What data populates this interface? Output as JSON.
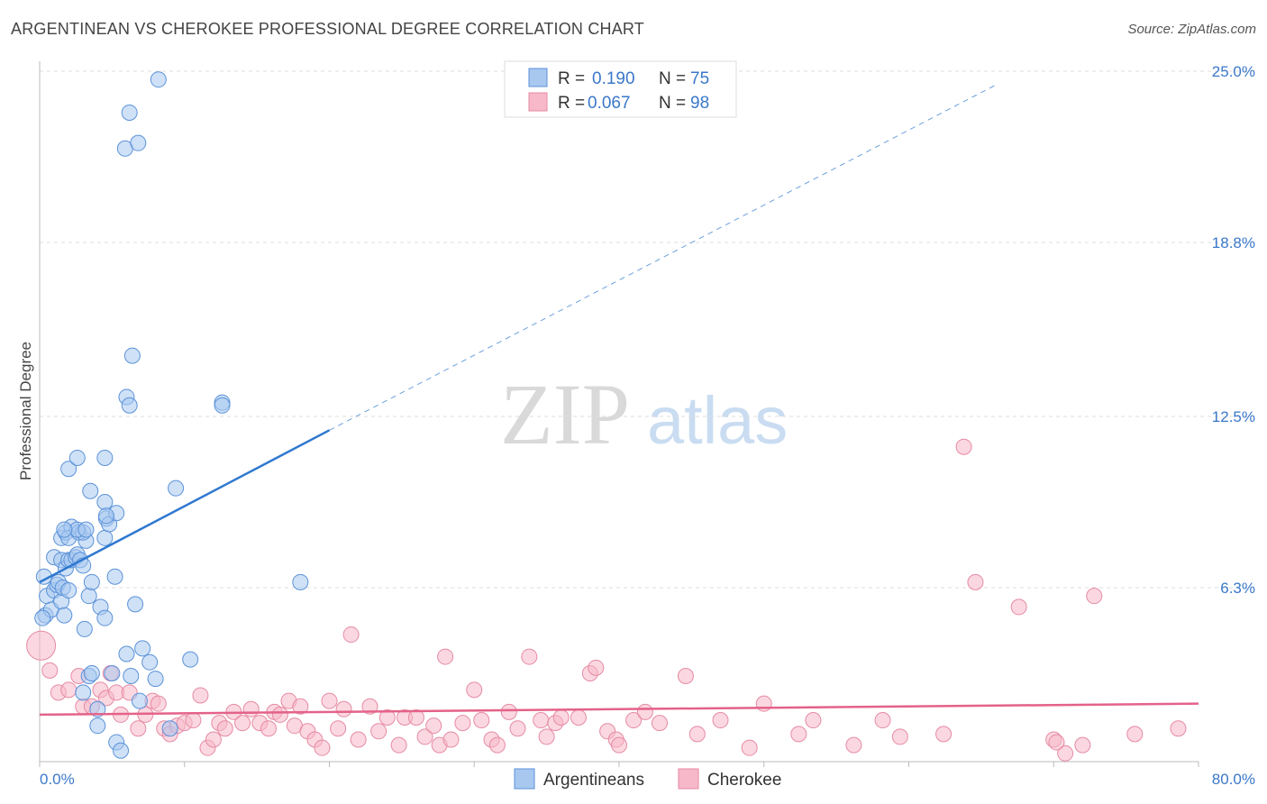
{
  "header": {
    "title": "ARGENTINEAN VS CHEROKEE PROFESSIONAL DEGREE CORRELATION CHART",
    "source": "Source: ZipAtlas.com"
  },
  "colors": {
    "blue": "#a8c8f0",
    "blue_edge": "#5b92d8",
    "blue_line": "#2e78d0",
    "pink": "#f7b8c9",
    "pink_edge": "#e68aa4",
    "pink_line": "#e4628a",
    "tick_text": "#3a78c9",
    "grid": "#dddddd"
  },
  "watermark": {
    "zip": "ZIP",
    "atlas": "atlas"
  },
  "chart_data": {
    "type": "scatter",
    "title": "ARGENTINEAN VS CHEROKEE PROFESSIONAL DEGREE CORRELATION CHART",
    "xlabel": "",
    "ylabel": "Professional Degree",
    "xlim": [
      0,
      80
    ],
    "ylim": [
      0,
      25.0
    ],
    "x_tick_labels": [
      "0.0%",
      "80.0%"
    ],
    "y_ticks": [
      6.3,
      12.5,
      18.8,
      25.0
    ],
    "y_tick_labels": [
      "6.3%",
      "12.5%",
      "18.8%",
      "25.0%"
    ],
    "grid": true,
    "legend_top": [
      {
        "r_label": "R =",
        "r_value": "0.190",
        "n_label": "N =",
        "n_value": "75"
      },
      {
        "r_label": "R =",
        "r_value": "0.067",
        "n_label": "N =",
        "n_value": "98"
      }
    ],
    "series": [
      {
        "name": "Argentineans",
        "trend": {
          "x0": 0,
          "y0": 6.5,
          "x1": 20,
          "y1": 12.0,
          "dash_to_x": 66,
          "dash_to_y": 24.5
        },
        "points": [
          [
            0.3,
            6.7
          ],
          [
            0.5,
            6.0
          ],
          [
            0.4,
            5.3
          ],
          [
            0.8,
            5.5
          ],
          [
            1.0,
            6.2
          ],
          [
            1.2,
            6.4
          ],
          [
            1.3,
            6.5
          ],
          [
            1.5,
            5.8
          ],
          [
            1.6,
            6.3
          ],
          [
            1.0,
            7.4
          ],
          [
            1.5,
            7.3
          ],
          [
            1.8,
            7.0
          ],
          [
            2.0,
            7.3
          ],
          [
            2.2,
            7.3
          ],
          [
            2.5,
            7.4
          ],
          [
            2.6,
            7.5
          ],
          [
            2.8,
            7.3
          ],
          [
            3.0,
            7.1
          ],
          [
            3.2,
            8.0
          ],
          [
            1.5,
            8.1
          ],
          [
            1.8,
            8.3
          ],
          [
            2.2,
            8.5
          ],
          [
            2.0,
            8.1
          ],
          [
            2.7,
            8.3
          ],
          [
            3.0,
            8.3
          ],
          [
            4.5,
            8.1
          ],
          [
            4.6,
            8.8
          ],
          [
            4.8,
            8.6
          ],
          [
            2.6,
            8.4
          ],
          [
            3.2,
            8.4
          ],
          [
            1.7,
            8.4
          ],
          [
            3.5,
            9.8
          ],
          [
            4.5,
            9.4
          ],
          [
            5.3,
            9.0
          ],
          [
            4.6,
            8.9
          ],
          [
            2.0,
            10.6
          ],
          [
            2.6,
            11.0
          ],
          [
            4.5,
            11.0
          ],
          [
            9.4,
            9.9
          ],
          [
            6.0,
            13.2
          ],
          [
            6.2,
            12.9
          ],
          [
            6.4,
            14.7
          ],
          [
            12.6,
            13.0
          ],
          [
            12.6,
            12.9
          ],
          [
            5.9,
            22.2
          ],
          [
            6.2,
            23.5
          ],
          [
            6.8,
            22.4
          ],
          [
            8.2,
            24.7
          ],
          [
            1.7,
            5.3
          ],
          [
            2.0,
            6.2
          ],
          [
            3.1,
            4.8
          ],
          [
            3.4,
            6.0
          ],
          [
            3.6,
            6.5
          ],
          [
            4.2,
            5.6
          ],
          [
            4.5,
            5.2
          ],
          [
            5.2,
            6.7
          ],
          [
            6.6,
            5.7
          ],
          [
            6.0,
            3.9
          ],
          [
            7.1,
            4.1
          ],
          [
            7.6,
            3.6
          ],
          [
            10.4,
            3.7
          ],
          [
            3.4,
            3.1
          ],
          [
            3.6,
            3.2
          ],
          [
            5.0,
            3.2
          ],
          [
            6.3,
            3.1
          ],
          [
            8.0,
            3.0
          ],
          [
            3.0,
            2.5
          ],
          [
            4.0,
            1.9
          ],
          [
            6.9,
            2.2
          ],
          [
            4.0,
            1.3
          ],
          [
            5.3,
            0.7
          ],
          [
            5.6,
            0.4
          ],
          [
            9.0,
            1.2
          ],
          [
            18.0,
            6.5
          ],
          [
            0.2,
            5.2
          ]
        ]
      },
      {
        "name": "Cherokee",
        "trend": {
          "x0": 0,
          "y0": 1.7,
          "x1": 80,
          "y1": 2.1
        },
        "points": [
          [
            0.1,
            4.2
          ],
          [
            0.7,
            3.3
          ],
          [
            1.3,
            2.5
          ],
          [
            2.0,
            2.6
          ],
          [
            2.7,
            3.1
          ],
          [
            3.0,
            2.0
          ],
          [
            3.6,
            2.0
          ],
          [
            4.2,
            2.6
          ],
          [
            4.6,
            2.3
          ],
          [
            4.9,
            3.2
          ],
          [
            5.3,
            2.5
          ],
          [
            5.6,
            1.7
          ],
          [
            6.2,
            2.5
          ],
          [
            6.8,
            1.2
          ],
          [
            7.3,
            1.7
          ],
          [
            7.8,
            2.2
          ],
          [
            8.2,
            2.1
          ],
          [
            8.6,
            1.2
          ],
          [
            9.0,
            1.0
          ],
          [
            9.5,
            1.3
          ],
          [
            10.0,
            1.4
          ],
          [
            10.6,
            1.5
          ],
          [
            11.1,
            2.4
          ],
          [
            11.6,
            0.5
          ],
          [
            12.0,
            0.8
          ],
          [
            12.4,
            1.4
          ],
          [
            12.8,
            1.2
          ],
          [
            13.4,
            1.8
          ],
          [
            14.0,
            1.4
          ],
          [
            14.6,
            1.9
          ],
          [
            15.2,
            1.4
          ],
          [
            15.8,
            1.2
          ],
          [
            16.2,
            1.8
          ],
          [
            16.6,
            1.7
          ],
          [
            17.2,
            2.2
          ],
          [
            17.6,
            1.3
          ],
          [
            18.0,
            2.0
          ],
          [
            18.5,
            1.1
          ],
          [
            19.0,
            0.8
          ],
          [
            19.5,
            0.5
          ],
          [
            20.0,
            2.2
          ],
          [
            20.6,
            1.2
          ],
          [
            21.0,
            1.9
          ],
          [
            21.5,
            4.6
          ],
          [
            22.0,
            0.8
          ],
          [
            22.8,
            2.0
          ],
          [
            23.4,
            1.1
          ],
          [
            24.0,
            1.6
          ],
          [
            24.8,
            0.6
          ],
          [
            25.2,
            1.6
          ],
          [
            26.0,
            1.6
          ],
          [
            26.6,
            0.9
          ],
          [
            27.2,
            1.3
          ],
          [
            27.6,
            0.6
          ],
          [
            28.0,
            3.8
          ],
          [
            28.4,
            0.8
          ],
          [
            29.2,
            1.4
          ],
          [
            30.0,
            2.6
          ],
          [
            30.5,
            1.5
          ],
          [
            31.2,
            0.8
          ],
          [
            31.6,
            0.6
          ],
          [
            32.4,
            1.8
          ],
          [
            33.0,
            1.2
          ],
          [
            33.8,
            3.8
          ],
          [
            34.6,
            1.5
          ],
          [
            35.0,
            0.9
          ],
          [
            35.6,
            1.4
          ],
          [
            36.0,
            1.6
          ],
          [
            37.2,
            1.6
          ],
          [
            38.0,
            3.2
          ],
          [
            38.4,
            3.4
          ],
          [
            39.2,
            1.1
          ],
          [
            39.8,
            0.8
          ],
          [
            40.0,
            0.6
          ],
          [
            41.0,
            1.5
          ],
          [
            41.8,
            1.8
          ],
          [
            42.8,
            1.4
          ],
          [
            44.6,
            3.1
          ],
          [
            45.4,
            1.0
          ],
          [
            47.0,
            1.5
          ],
          [
            49.0,
            0.5
          ],
          [
            50.0,
            2.1
          ],
          [
            52.4,
            1.0
          ],
          [
            53.4,
            1.5
          ],
          [
            56.2,
            0.6
          ],
          [
            58.2,
            1.5
          ],
          [
            59.4,
            0.9
          ],
          [
            62.4,
            1.0
          ],
          [
            63.8,
            11.4
          ],
          [
            64.6,
            6.5
          ],
          [
            67.6,
            5.6
          ],
          [
            70.0,
            0.8
          ],
          [
            70.8,
            0.3
          ],
          [
            72.0,
            0.6
          ],
          [
            72.8,
            6.0
          ],
          [
            75.6,
            1.0
          ],
          [
            78.6,
            1.2
          ],
          [
            70.2,
            0.7
          ]
        ]
      }
    ]
  }
}
